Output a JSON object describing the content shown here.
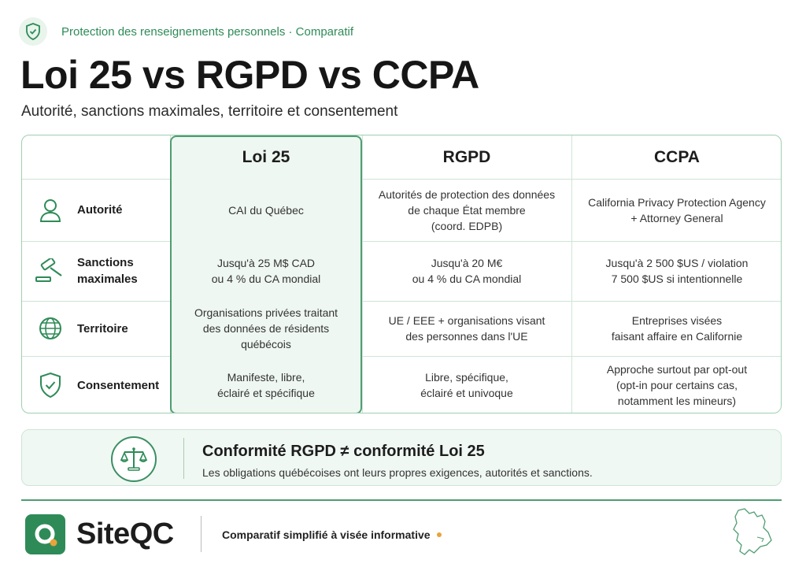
{
  "header": {
    "kicker": "Protection des renseignements personnels · Comparatif",
    "title": "Loi 25 vs RGPD vs CCPA",
    "subtitle": "Autorité, sanctions maximales, territoire et consentement"
  },
  "table": {
    "columns": [
      "Loi 25",
      "RGPD",
      "CCPA"
    ],
    "rows": [
      {
        "label_lines": [
          "Autorité"
        ],
        "icon": "person-icon",
        "cells": [
          [
            "CAI du Québec"
          ],
          [
            "Autorités de protection des données",
            "de chaque État membre",
            "(coord. EDPB)"
          ],
          [
            "California Privacy Protection Agency",
            "+ Attorney General"
          ]
        ]
      },
      {
        "label_lines": [
          "Sanctions",
          "maximales"
        ],
        "icon": "gavel-icon",
        "cells": [
          [
            "Jusqu'à 25 M$ CAD",
            "ou 4 % du CA mondial"
          ],
          [
            "Jusqu'à 20 M€",
            "ou 4 % du CA mondial"
          ],
          [
            "Jusqu'à 2 500 $US / violation",
            "7 500 $US si intentionnelle"
          ]
        ]
      },
      {
        "label_lines": [
          "Territoire"
        ],
        "icon": "globe-icon",
        "cells": [
          [
            "Organisations privées traitant",
            "des données de résidents québécois"
          ],
          [
            "UE / EEE + organisations visant",
            "des personnes dans l'UE"
          ],
          [
            "Entreprises visées",
            "faisant affaire en Californie"
          ]
        ]
      },
      {
        "label_lines": [
          "Consentement"
        ],
        "icon": "shield-check-icon",
        "cells": [
          [
            "Manifeste, libre,",
            "éclairé et spécifique"
          ],
          [
            "Libre, spécifique,",
            "éclairé et univoque"
          ],
          [
            "Approche surtout par opt-out",
            "(opt-in pour certains cas,",
            "notamment les mineurs)"
          ]
        ]
      }
    ]
  },
  "banner": {
    "title": "Conformité RGPD ≠ conformité Loi 25",
    "text": "Les obligations québécoises ont leurs propres exigences, autorités et sanctions."
  },
  "footer": {
    "brand": "SiteQC",
    "note": "Comparatif simplifié à visée informative"
  },
  "colors": {
    "accent": "#2e8b57",
    "highlight_bg": "#eef7f1",
    "border": "#9fcfb2",
    "dot": "#e8a33a"
  }
}
